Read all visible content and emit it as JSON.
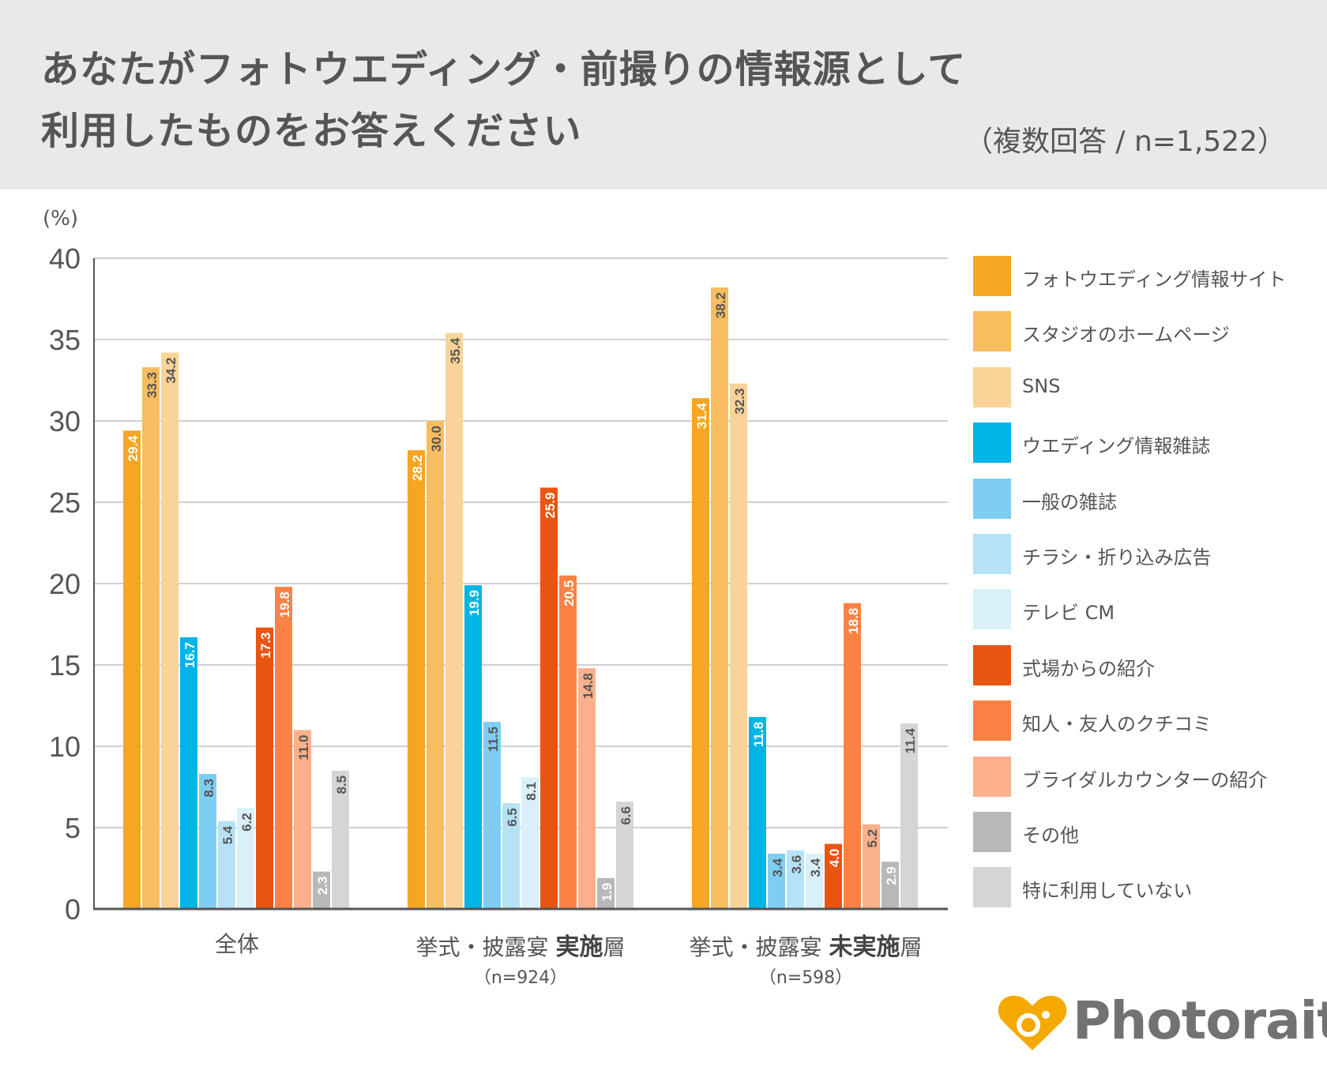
{
  "header": {
    "title_line1": "あなたがフォトウエディング・前撮りの情報源として",
    "title_line2": "利用したものをお答えください",
    "subtitle": "（複数回答 / n=1,522）"
  },
  "chart_data": {
    "type": "bar",
    "ylabel": "(%)",
    "ylim": [
      0,
      40
    ],
    "yticks": [
      0,
      5,
      10,
      15,
      20,
      25,
      30,
      35,
      40
    ],
    "grid": true,
    "legend_position": "right",
    "categories": [
      {
        "pre": "全体",
        "bold": "",
        "post": "",
        "n": ""
      },
      {
        "pre": "挙式・披露宴 ",
        "bold": "実施",
        "post": "層",
        "n": "（n=924）"
      },
      {
        "pre": "挙式・披露宴 ",
        "bold": "未実施",
        "post": "層",
        "n": "（n=598）"
      }
    ],
    "series": [
      {
        "name": "フォトウエディング情報サイト",
        "color": "#f5a623",
        "label_color": "#ffffff",
        "values": [
          29.4,
          28.2,
          31.4
        ]
      },
      {
        "name": "スタジオのホームページ",
        "color": "#f7bd5f",
        "label_color": "#555555",
        "values": [
          33.3,
          30.0,
          38.2
        ]
      },
      {
        "name": "SNS",
        "color": "#f9d397",
        "label_color": "#555555",
        "values": [
          34.2,
          35.4,
          32.3
        ]
      },
      {
        "name": "ウエディング情報雑誌",
        "color": "#00b4e6",
        "label_color": "#ffffff",
        "values": [
          16.7,
          19.9,
          11.8
        ]
      },
      {
        "name": "一般の雑誌",
        "color": "#7ecef2",
        "label_color": "#555555",
        "values": [
          8.3,
          11.5,
          3.4
        ]
      },
      {
        "name": "チラシ・折り込み広告",
        "color": "#b5e2f6",
        "label_color": "#555555",
        "values": [
          5.4,
          6.5,
          3.6
        ]
      },
      {
        "name": "テレビ CM",
        "color": "#d9f0fb",
        "label_color": "#555555",
        "values": [
          6.2,
          8.1,
          3.4
        ]
      },
      {
        "name": "式場からの紹介",
        "color": "#e85511",
        "label_color": "#ffffff",
        "values": [
          17.3,
          25.9,
          4.0
        ]
      },
      {
        "name": "知人・友人のクチコミ",
        "color": "#fb8244",
        "label_color": "#ffffff",
        "values": [
          19.8,
          20.5,
          18.8
        ]
      },
      {
        "name": "ブライダルカウンターの紹介",
        "color": "#fbb08c",
        "label_color": "#555555",
        "values": [
          11.0,
          14.8,
          5.2
        ]
      },
      {
        "name": "その他",
        "color": "#b8b8b8",
        "label_color": "#ffffff",
        "values": [
          2.3,
          1.9,
          2.9
        ]
      },
      {
        "name": "特に利用していない",
        "color": "#d5d5d5",
        "label_color": "#555555",
        "values": [
          8.5,
          6.6,
          11.4
        ]
      }
    ]
  },
  "logo": {
    "text": "Photorait",
    "color": "#f5a800"
  }
}
